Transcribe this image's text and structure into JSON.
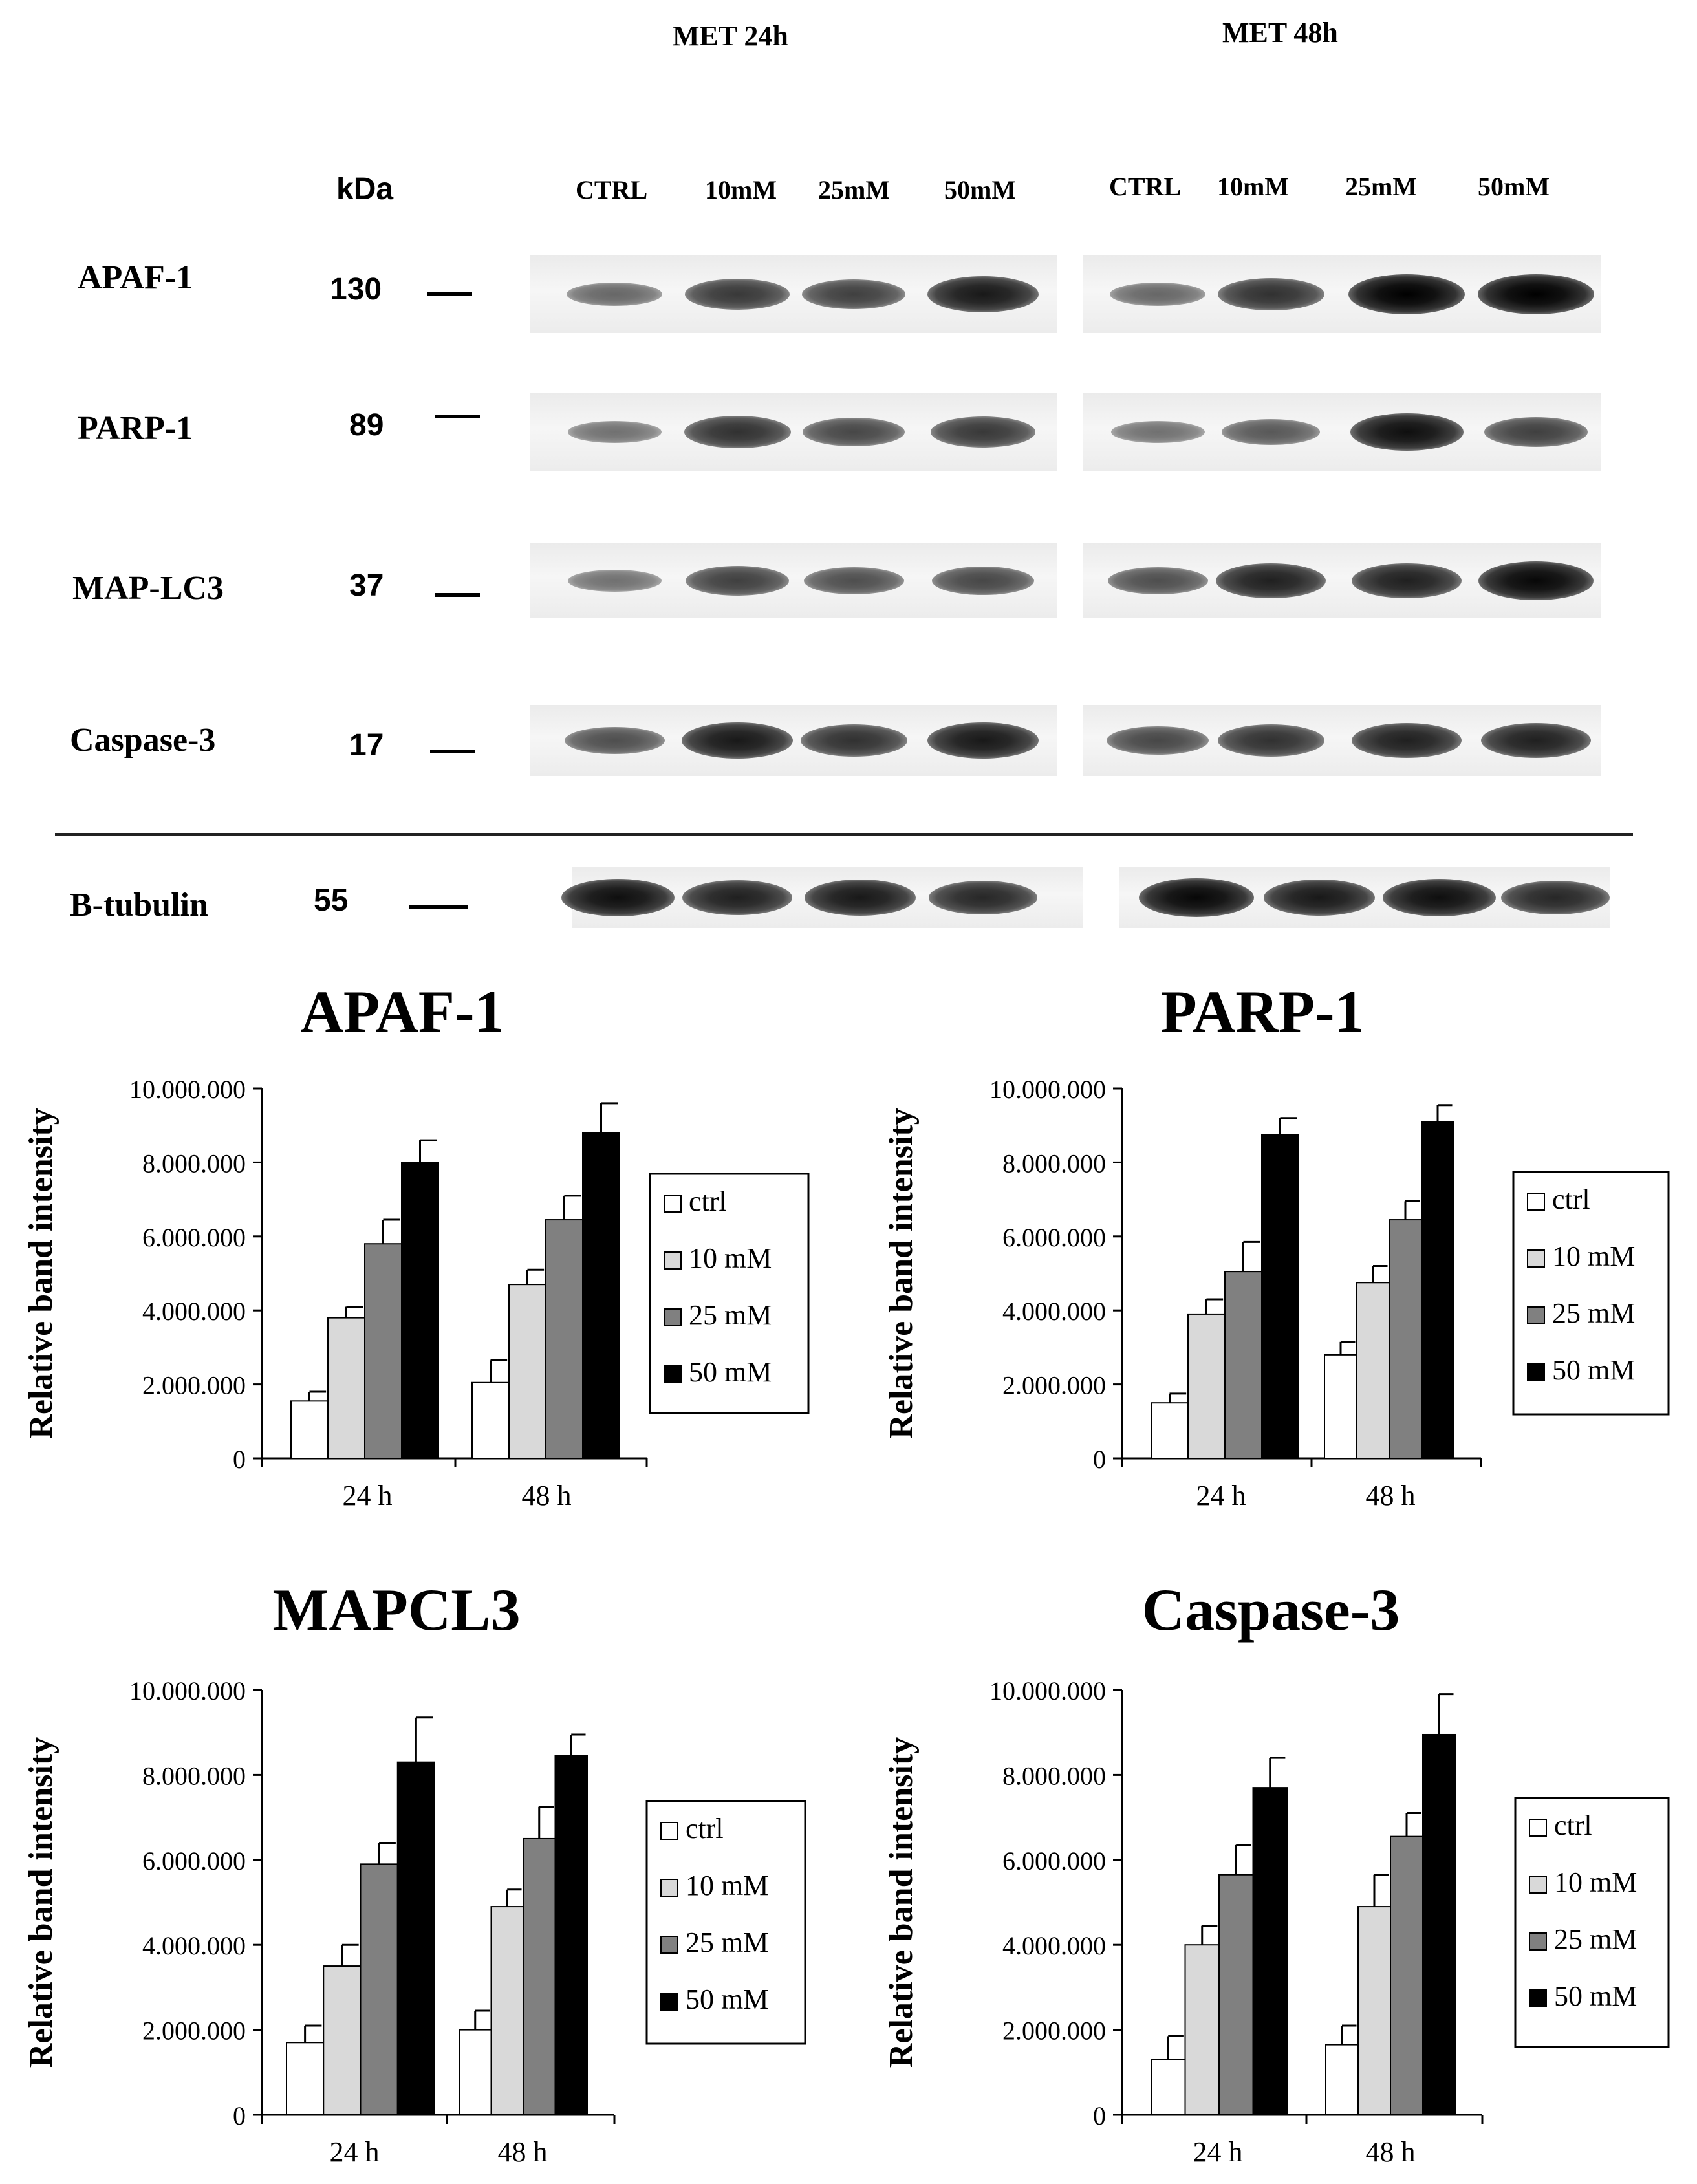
{
  "blot": {
    "group_24h": "MET 24h",
    "group_48h": "MET 48h",
    "kda_header": "kDa",
    "lanes_24h": [
      "CTRL",
      "10mM",
      "25mM",
      "50mM"
    ],
    "lanes_48h": [
      "CTRL",
      "10mM",
      "25mM",
      "50mM"
    ],
    "proteins": [
      {
        "name": "APAF-1",
        "kda": "130",
        "intensity_24h": [
          0.35,
          0.65,
          0.6,
          0.85
        ],
        "intensity_48h": [
          0.35,
          0.7,
          1.0,
          1.0
        ]
      },
      {
        "name": "PARP-1",
        "kda": "89",
        "intensity_24h": [
          0.3,
          0.7,
          0.55,
          0.65
        ],
        "intensity_48h": [
          0.3,
          0.45,
          0.9,
          0.6
        ]
      },
      {
        "name": "MAP-LC3",
        "kda": "37",
        "intensity_24h": [
          0.3,
          0.6,
          0.5,
          0.55
        ],
        "intensity_48h": [
          0.5,
          0.8,
          0.8,
          0.95
        ]
      },
      {
        "name": "Caspase-3",
        "kda": "17",
        "intensity_24h": [
          0.5,
          0.85,
          0.7,
          0.85
        ],
        "intensity_48h": [
          0.55,
          0.7,
          0.8,
          0.8
        ]
      }
    ],
    "loading_control": {
      "name": "B-tubulin",
      "kda": "55",
      "intensity_24h": [
        0.9,
        0.8,
        0.85,
        0.75
      ],
      "intensity_48h": [
        0.95,
        0.85,
        0.9,
        0.75
      ]
    }
  },
  "chart_data": [
    {
      "type": "bar",
      "title": "APAF-1",
      "ylabel": "Relative band intensity",
      "xlabel": "",
      "categories": [
        "24 h",
        "48 h"
      ],
      "ylim": [
        0,
        10000000
      ],
      "yticks": [
        "0",
        "2.000.000",
        "4.000.000",
        "6.000.000",
        "8.000.000",
        "10.000.000"
      ],
      "series": [
        {
          "name": "ctrl",
          "color": "#ffffff",
          "values": [
            1550000,
            2050000
          ],
          "errors": [
            250000,
            600000
          ]
        },
        {
          "name": "10 mM",
          "color": "#d9d9d9",
          "values": [
            3800000,
            4700000
          ],
          "errors": [
            300000,
            400000
          ]
        },
        {
          "name": "25 mM",
          "color": "#808080",
          "values": [
            5800000,
            6450000
          ],
          "errors": [
            650000,
            650000
          ]
        },
        {
          "name": "50 mM",
          "color": "#000000",
          "values": [
            8000000,
            8800000
          ],
          "errors": [
            600000,
            800000
          ]
        }
      ],
      "legend": "right",
      "grid": false
    },
    {
      "type": "bar",
      "title": "PARP-1",
      "ylabel": "Relative band intensity",
      "xlabel": "",
      "categories": [
        "24 h",
        "48 h"
      ],
      "ylim": [
        0,
        10000000
      ],
      "yticks": [
        "0",
        "2.000.000",
        "4.000.000",
        "6.000.000",
        "8.000.000",
        "10.000.000"
      ],
      "series": [
        {
          "name": "ctrl",
          "color": "#ffffff",
          "values": [
            1500000,
            2800000
          ],
          "errors": [
            250000,
            350000
          ]
        },
        {
          "name": "10 mM",
          "color": "#d9d9d9",
          "values": [
            3900000,
            4750000
          ],
          "errors": [
            400000,
            450000
          ]
        },
        {
          "name": "25 mM",
          "color": "#808080",
          "values": [
            5050000,
            6450000
          ],
          "errors": [
            800000,
            500000
          ]
        },
        {
          "name": "50 mM",
          "color": "#000000",
          "values": [
            8750000,
            9100000
          ],
          "errors": [
            450000,
            450000
          ]
        }
      ],
      "legend": "right",
      "grid": false
    },
    {
      "type": "bar",
      "title": "MAPCL3",
      "ylabel": "Relative band intensity",
      "xlabel": "",
      "categories": [
        "24 h",
        "48 h"
      ],
      "ylim": [
        0,
        10000000
      ],
      "yticks": [
        "0",
        "2.000.000",
        "4.000.000",
        "6.000.000",
        "8.000.000",
        "10.000.000"
      ],
      "series": [
        {
          "name": "ctrl",
          "color": "#ffffff",
          "values": [
            1700000,
            2000000
          ],
          "errors": [
            400000,
            450000
          ]
        },
        {
          "name": "10 mM",
          "color": "#d9d9d9",
          "values": [
            3500000,
            4900000
          ],
          "errors": [
            500000,
            400000
          ]
        },
        {
          "name": "25 mM",
          "color": "#808080",
          "values": [
            5900000,
            6500000
          ],
          "errors": [
            500000,
            750000
          ]
        },
        {
          "name": "50 mM",
          "color": "#000000",
          "values": [
            8300000,
            8450000
          ],
          "errors": [
            1050000,
            500000
          ]
        }
      ],
      "legend": "right",
      "grid": false
    },
    {
      "type": "bar",
      "title": "Caspase-3",
      "ylabel": "Relative band intensity",
      "xlabel": "",
      "categories": [
        "24 h",
        "48 h"
      ],
      "ylim": [
        0,
        10000000
      ],
      "yticks": [
        "0",
        "2.000.000",
        "4.000.000",
        "6.000.000",
        "8.000.000",
        "10.000.000"
      ],
      "series": [
        {
          "name": "ctrl",
          "color": "#ffffff",
          "values": [
            1300000,
            1650000
          ],
          "errors": [
            550000,
            450000
          ]
        },
        {
          "name": "10 mM",
          "color": "#d9d9d9",
          "values": [
            4000000,
            4900000
          ],
          "errors": [
            450000,
            750000
          ]
        },
        {
          "name": "25 mM",
          "color": "#808080",
          "values": [
            5650000,
            6550000
          ],
          "errors": [
            700000,
            550000
          ]
        },
        {
          "name": "50 mM",
          "color": "#000000",
          "values": [
            7700000,
            8950000
          ],
          "errors": [
            700000,
            950000
          ]
        }
      ],
      "legend": "right",
      "grid": false
    }
  ]
}
